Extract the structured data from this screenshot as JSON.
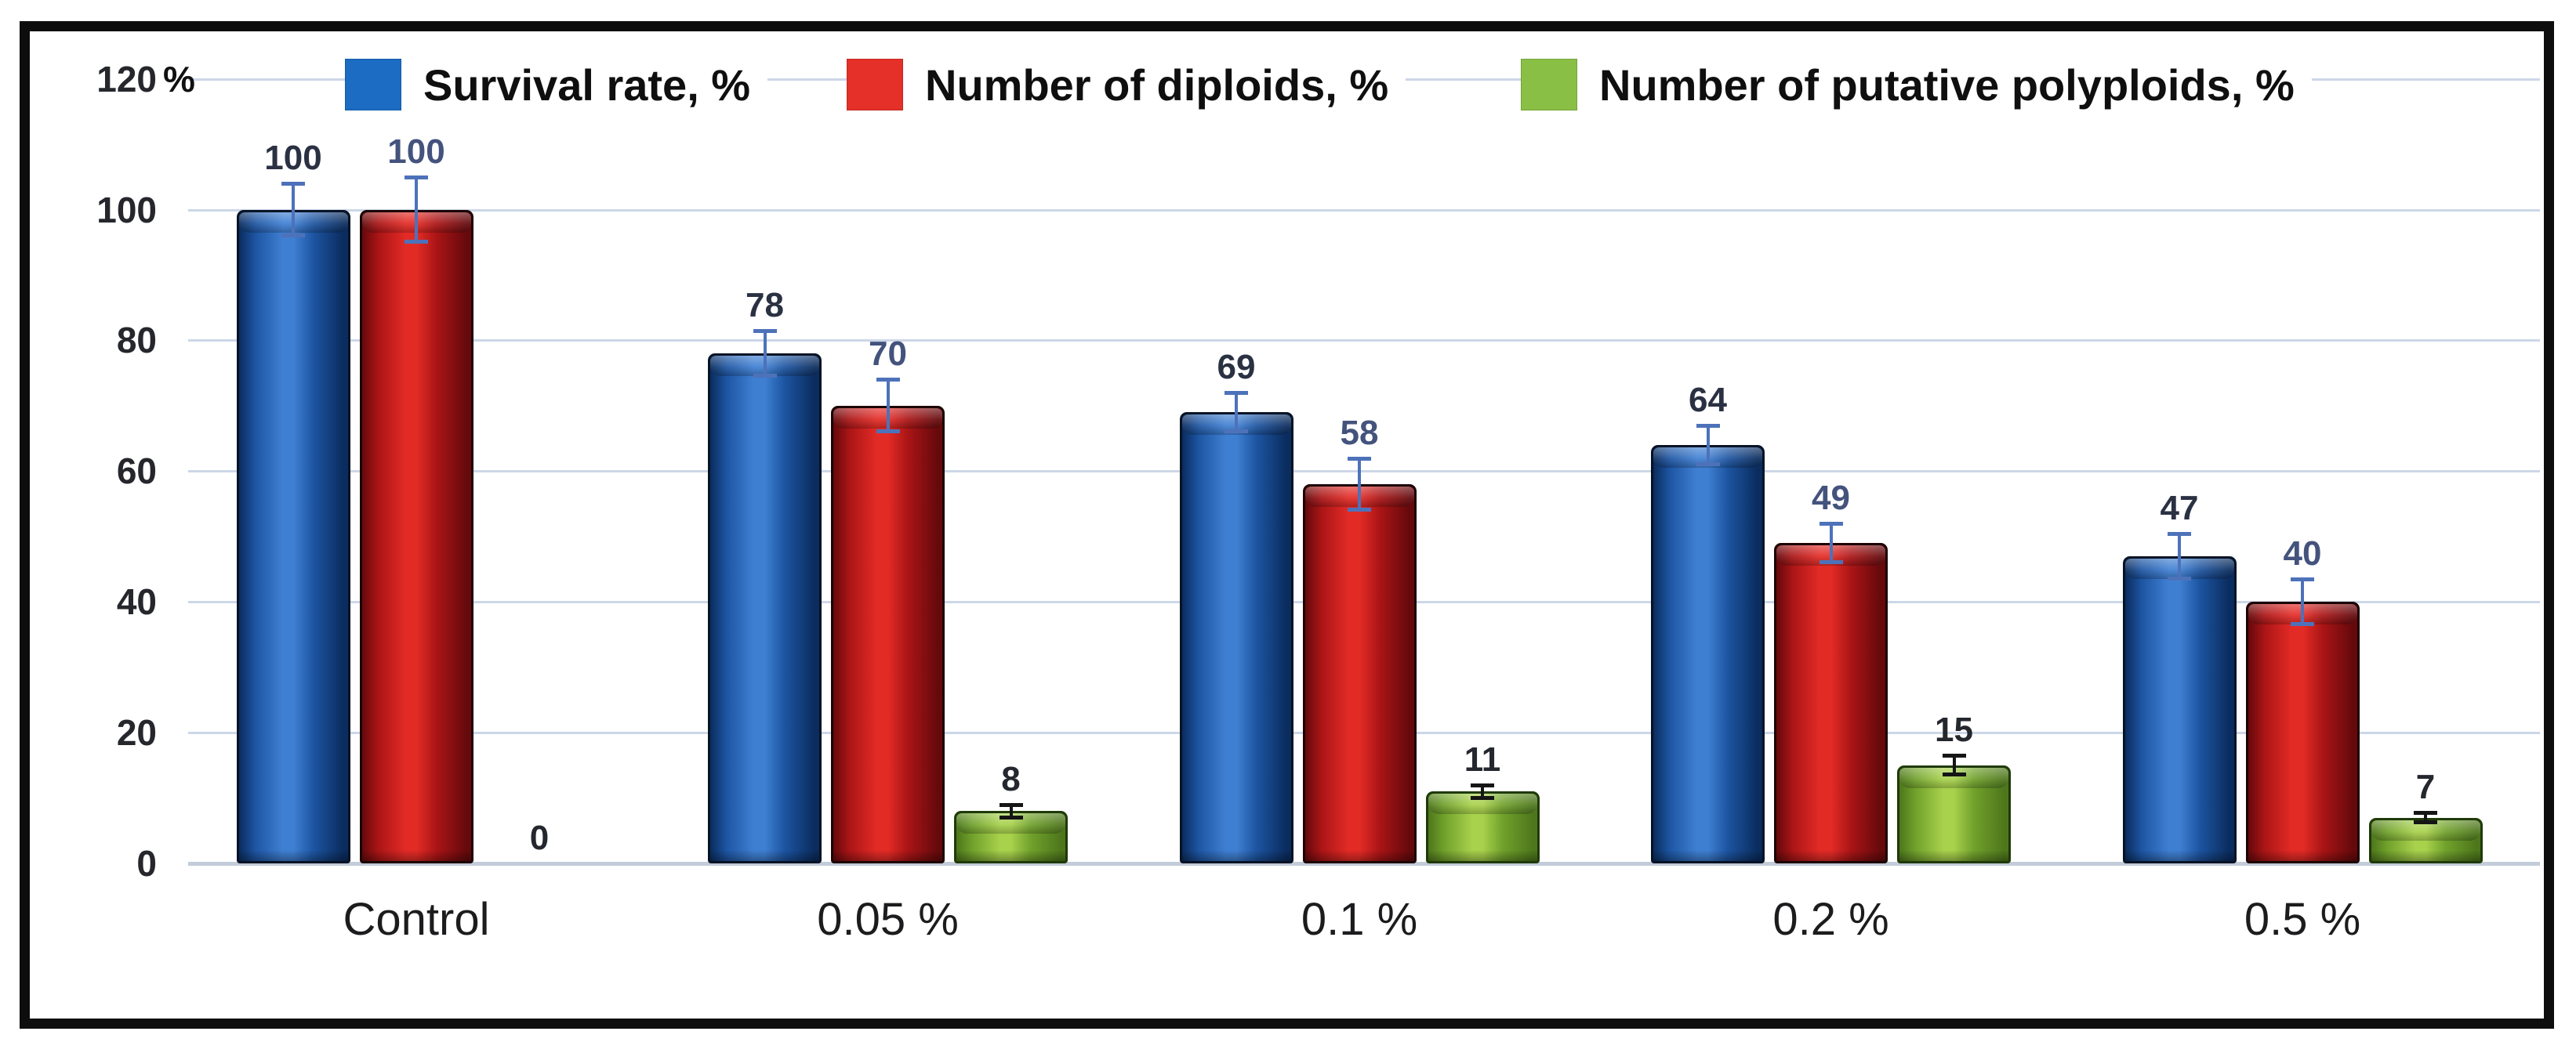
{
  "axis": {
    "unit_label": "%"
  },
  "colors": {
    "gridline": "#ccd7e8",
    "axis_line": "#c3ccd9",
    "tick_text": "#25272c",
    "category_text": "#1c1c1e",
    "legend_text": "#0f0f10",
    "frame": "#0d0d0d"
  },
  "chart_data": {
    "type": "bar",
    "title": "",
    "xlabel": "",
    "ylabel": "%",
    "ylim": [
      0,
      120
    ],
    "y_ticks": [
      0,
      20,
      40,
      60,
      80,
      100,
      120
    ],
    "grid": true,
    "legend_position": "top",
    "categories": [
      "Control",
      "0.05 %",
      "0.1 %",
      "0.2 %",
      "0.5 %"
    ],
    "series": [
      {
        "name": "Survival rate, %",
        "values": [
          100,
          78,
          69,
          64,
          47
        ],
        "errors": [
          4,
          3.5,
          3,
          3,
          3.5
        ],
        "legend_color": "#1b6cc2",
        "bar_dark": "#0a2c5e",
        "bar_mid": "#1d55a2",
        "bar_light": "#3f7fd2",
        "outline": "#071325",
        "label_color": "#2a3142",
        "error_color": "#4d72ba"
      },
      {
        "name": "Number of diploids, %",
        "values": [
          100,
          70,
          58,
          49,
          40
        ],
        "errors": [
          5,
          4,
          4,
          3,
          3.5
        ],
        "legend_color": "#e43028",
        "bar_dark": "#65090c",
        "bar_mid": "#ab1516",
        "bar_light": "#e32b26",
        "outline": "#1c0404",
        "label_color": "#44537d",
        "error_color": "#4d72ba"
      },
      {
        "name": "Number of putative polyploids, %",
        "values": [
          0,
          8,
          11,
          15,
          7
        ],
        "errors": [
          0,
          1,
          1,
          1.5,
          0.8
        ],
        "legend_color": "#8abf45",
        "bar_dark": "#4e771c",
        "bar_mid": "#71a22c",
        "bar_light": "#a8d14c",
        "outline": "#1f3a08",
        "label_color": "#24282e",
        "error_color": "#151515"
      }
    ]
  }
}
